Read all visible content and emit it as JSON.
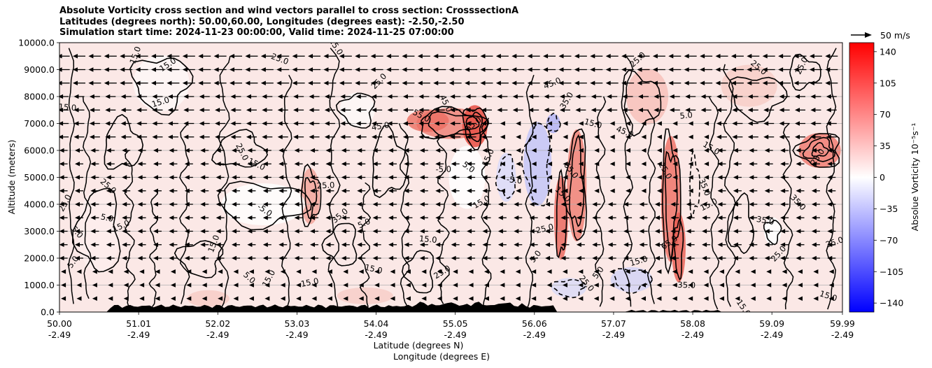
{
  "chart_data": {
    "type": "heatmap",
    "title_lines": [
      "Absolute Vorticity cross section and wind vectors parallel to cross section: CrosssectionA",
      "Latitudes (degrees north): 50.00,60.00, Longitudes (degrees east): -2.50,-2.50",
      "Simulation start time: 2024-11-23 00:00:00, Valid time: 2024-11-25 07:00:00"
    ],
    "x_ticks": [
      {
        "lat": "50.00",
        "lon": "-2.49"
      },
      {
        "lat": "51.01",
        "lon": "-2.49"
      },
      {
        "lat": "52.02",
        "lon": "-2.49"
      },
      {
        "lat": "53.03",
        "lon": "-2.49"
      },
      {
        "lat": "54.04",
        "lon": "-2.49"
      },
      {
        "lat": "55.05",
        "lon": "-2.49"
      },
      {
        "lat": "56.06",
        "lon": "-2.49"
      },
      {
        "lat": "57.07",
        "lon": "-2.49"
      },
      {
        "lat": "58.08",
        "lon": "-2.49"
      },
      {
        "lat": "59.09",
        "lon": "-2.49"
      },
      {
        "lat": "59.99",
        "lon": "-2.49"
      }
    ],
    "xlabel_lat": "Latitude (degrees N)",
    "xlabel_lon": "Longitude (degrees E)",
    "ylabel": "Altitude (meters)",
    "ylim": [
      0,
      10000
    ],
    "y_ticks": [
      "0.0",
      "1000.0",
      "2000.0",
      "3000.0",
      "4000.0",
      "5000.0",
      "6000.0",
      "7000.0",
      "8000.0",
      "9000.0",
      "10000.0"
    ],
    "grid": "horizontal",
    "colorbar": {
      "label": "Absolue Vorticity 10⁻⁵s⁻¹",
      "range": [
        -150,
        150
      ],
      "ticks": [
        "140",
        "105",
        "70",
        "35",
        "0",
        "−35",
        "−70",
        "−105",
        "−140"
      ],
      "tick_values": [
        140,
        105,
        70,
        35,
        0,
        -35,
        -70,
        -105,
        -140
      ],
      "colormap": "bwr"
    },
    "quiver_key": {
      "label": "50 m/s"
    },
    "contour_labels": [
      {
        "text": "15.0",
        "lat": 51.0,
        "alt": 9500
      },
      {
        "text": "15.0",
        "lat": 51.4,
        "alt": 9100
      },
      {
        "text": "15.0",
        "lat": 50.1,
        "alt": 7500
      },
      {
        "text": "25.0",
        "lat": 50.6,
        "alt": 4600
      },
      {
        "text": "25.0",
        "lat": 50.1,
        "alt": 4000
      },
      {
        "text": "15.0",
        "lat": 50.8,
        "alt": 3100
      },
      {
        "text": "5.0",
        "lat": 50.6,
        "alt": 3400
      },
      {
        "text": "5.0",
        "lat": 50.2,
        "alt": 2900
      },
      {
        "text": "5.0",
        "lat": 50.2,
        "alt": 1800
      },
      {
        "text": "15.0",
        "lat": 51.3,
        "alt": 7700
      },
      {
        "text": "25.0",
        "lat": 52.8,
        "alt": 9300
      },
      {
        "text": "15.0",
        "lat": 53.5,
        "alt": 9800
      },
      {
        "text": "25.0",
        "lat": 54.1,
        "alt": 8500
      },
      {
        "text": "45.0",
        "lat": 54.1,
        "alt": 6800
      },
      {
        "text": "55.0",
        "lat": 54.6,
        "alt": 7200
      },
      {
        "text": "45.0",
        "lat": 54.9,
        "alt": 7700
      },
      {
        "text": "65.0",
        "lat": 55.3,
        "alt": 6900
      },
      {
        "text": "-5.0",
        "lat": 54.9,
        "alt": 5200
      },
      {
        "text": "5.0",
        "lat": 55.2,
        "alt": 5300
      },
      {
        "text": "15.0",
        "lat": 55.5,
        "alt": 5700
      },
      {
        "text": "15.0",
        "lat": 55.4,
        "alt": 4000
      },
      {
        "text": "-5.0",
        "lat": 55.8,
        "alt": 4800
      },
      {
        "text": "15.0",
        "lat": 56.4,
        "alt": 4300
      },
      {
        "text": "35.0",
        "lat": 56.5,
        "alt": 7800
      },
      {
        "text": "45.0",
        "lat": 56.3,
        "alt": 8400
      },
      {
        "text": "15.0",
        "lat": 56.8,
        "alt": 6900
      },
      {
        "text": "65.0",
        "lat": 56.5,
        "alt": 5200
      },
      {
        "text": "5.0",
        "lat": 56.1,
        "alt": 2000
      },
      {
        "text": "25.0",
        "lat": 56.2,
        "alt": 3000
      },
      {
        "text": "45.0",
        "lat": 57.2,
        "alt": 6600
      },
      {
        "text": "25.0",
        "lat": 57.7,
        "alt": 5200
      },
      {
        "text": "25.0",
        "lat": 57.4,
        "alt": 9300
      },
      {
        "text": "5.0",
        "lat": 58.0,
        "alt": 7200
      },
      {
        "text": "15.0",
        "lat": 58.3,
        "alt": 6000
      },
      {
        "text": "35.0",
        "lat": 58.2,
        "alt": 4600
      },
      {
        "text": "65.0",
        "lat": 57.8,
        "alt": 2500
      },
      {
        "text": "35.0",
        "lat": 58.0,
        "alt": 900
      },
      {
        "text": "25.0",
        "lat": 58.9,
        "alt": 9000
      },
      {
        "text": "25.0",
        "lat": 59.5,
        "alt": 9100
      },
      {
        "text": "15.0",
        "lat": 58.3,
        "alt": 3900
      },
      {
        "text": "35.0",
        "lat": 59.0,
        "alt": 3300
      },
      {
        "text": "35.0",
        "lat": 59.4,
        "alt": 4000
      },
      {
        "text": "25.0",
        "lat": 59.7,
        "alt": 5700
      },
      {
        "text": "25.0",
        "lat": 59.9,
        "alt": 2500
      },
      {
        "text": "15.0",
        "lat": 59.8,
        "alt": 500
      },
      {
        "text": "15.0",
        "lat": 58.7,
        "alt": 100
      },
      {
        "text": "25.0",
        "lat": 59.2,
        "alt": 2100
      },
      {
        "text": "15.0",
        "lat": 53.2,
        "alt": 1000
      },
      {
        "text": "15.0",
        "lat": 52.5,
        "alt": 5400
      },
      {
        "text": "25.0",
        "lat": 52.3,
        "alt": 5900
      },
      {
        "text": "35.0",
        "lat": 53.6,
        "alt": 3500
      },
      {
        "text": "25.0",
        "lat": 53.4,
        "alt": 4600
      },
      {
        "text": "-5.0",
        "lat": 52.6,
        "alt": 3700
      },
      {
        "text": "15.0",
        "lat": 52.0,
        "alt": 2500
      },
      {
        "text": "25.0",
        "lat": 54.9,
        "alt": 1400
      },
      {
        "text": "15.0",
        "lat": 54.7,
        "alt": 2600
      },
      {
        "text": "5.0",
        "lat": 52.4,
        "alt": 1200
      },
      {
        "text": "15.0",
        "lat": 52.7,
        "alt": 1200
      },
      {
        "text": "5.0",
        "lat": 53.9,
        "alt": 3200
      },
      {
        "text": "15.0",
        "lat": 54.0,
        "alt": 1500
      },
      {
        "text": "25.0",
        "lat": 56.7,
        "alt": 1000
      },
      {
        "text": "5.0",
        "lat": 56.9,
        "alt": 1400
      },
      {
        "text": "15.0",
        "lat": 57.4,
        "alt": 1800
      }
    ]
  }
}
